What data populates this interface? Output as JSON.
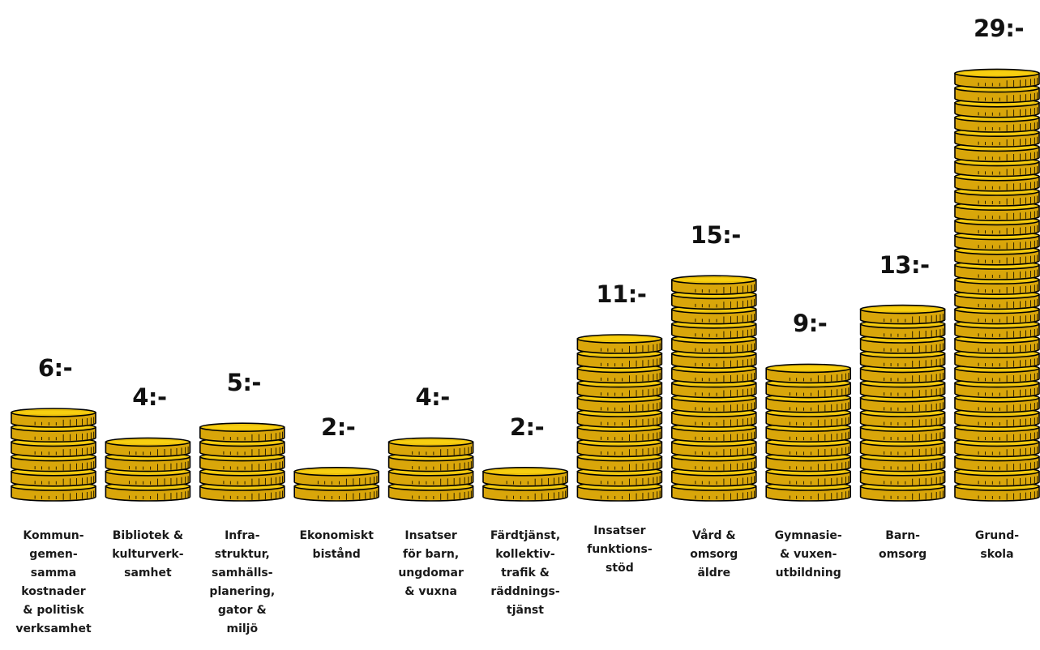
{
  "chart_data": {
    "type": "bar",
    "value_suffix": ":-",
    "categories": [
      "Kommun-\ngemen-\nsamma\nkostnader\n& politisk\nverksamhet",
      "Bibliotek &\nkulturverk-\nsamhet",
      "Infra-\nstruktur,\nsamhälls-\nplanering,\ngator &\nmiljö",
      "Ekonomiskt\nbistånd",
      "Insatser\nför barn,\nungdomar\n& vuxna",
      "Färdtjänst,\nkollektiv-\ntrafik &\nräddnings-\ntjänst",
      "Insatser\nfunktions-\nstöd",
      "Vård &\nomsorg\näldre",
      "Gymnasie-\n& vuxen-\nutbildning",
      "Barn-\nomsorg",
      "Grund-\nskola"
    ],
    "values": [
      6,
      4,
      5,
      2,
      4,
      2,
      11,
      15,
      9,
      13,
      29
    ],
    "colors": {
      "coin_face": "#f7cf10",
      "coin_edge": "#d9a60a",
      "coin_outline": "#000000"
    }
  }
}
